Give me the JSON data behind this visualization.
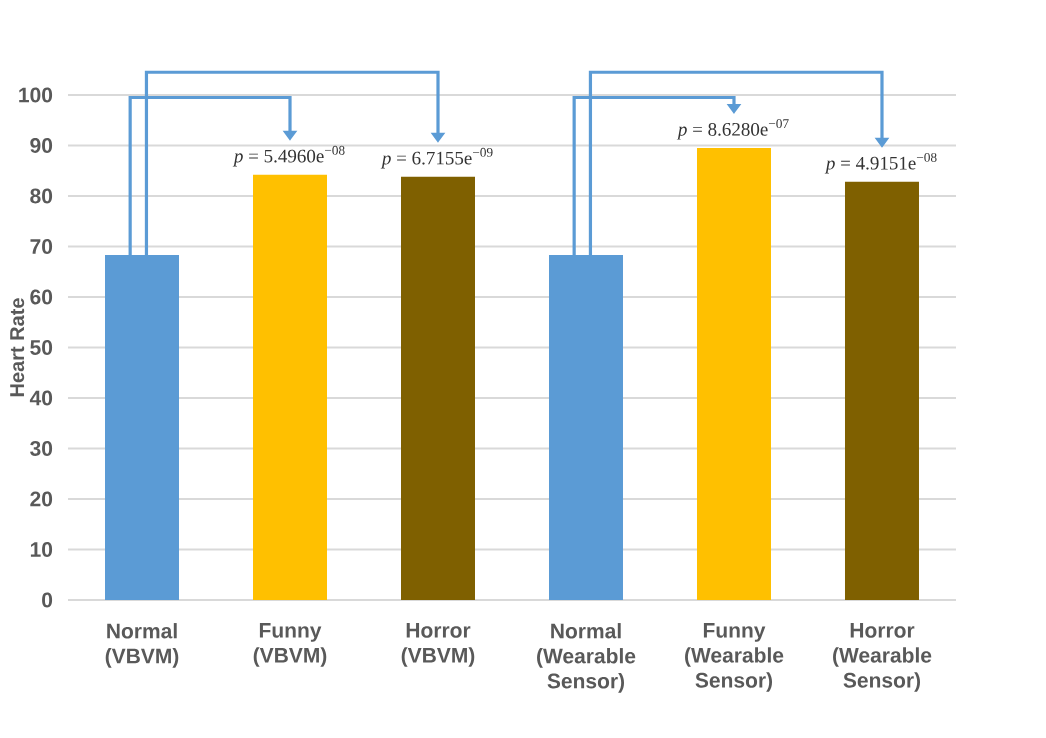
{
  "chart_data": {
    "type": "bar",
    "categories": [
      "Normal (VBVM)",
      "Funny (VBVM)",
      "Horror (VBVM)",
      "Normal (Wearable Sensor)",
      "Funny (Wearable Sensor)",
      "Horror (Wearable Sensor)"
    ],
    "values": [
      68.3,
      84.2,
      83.8,
      68.3,
      89.5,
      82.8
    ],
    "colors": [
      "#5b9bd5",
      "#ffc000",
      "#7f6000",
      "#5b9bd5",
      "#ffc000",
      "#7f6000"
    ],
    "ylabel": "Heart Rate",
    "ylim": [
      0,
      100
    ],
    "yticks": [
      0,
      10,
      20,
      30,
      40,
      50,
      60,
      70,
      80,
      90,
      100
    ],
    "grid": "y",
    "annotations": [
      {
        "text": "*p* = 5.4960e$^{−08}$",
        "x": "Funny (VBVM)",
        "y": 84.2
      },
      {
        "text": "*p* = 6.7155e$^{−09}$",
        "x": "Horror (VBVM)",
        "y": 83.8
      },
      {
        "text": "*p* = 8.6280e$^{−07}$",
        "x": "Funny (Wearable Sensor)",
        "y": 89.5
      },
      {
        "text": "*p* = 4.9151e$^{−08}$",
        "x": "Horror (Wearable Sensor)",
        "y": 82.8
      }
    ]
  }
}
